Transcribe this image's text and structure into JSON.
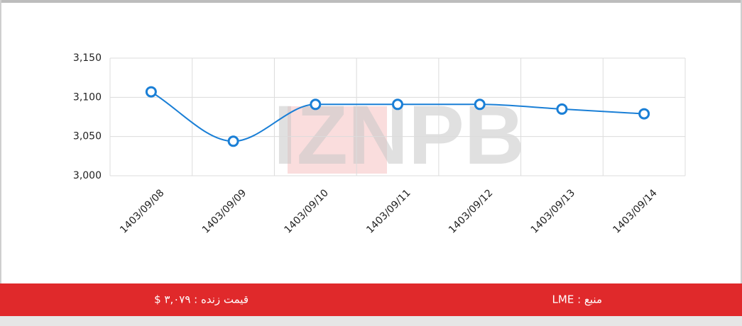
{
  "chart_data": {
    "type": "line",
    "watermark": "IZNPB",
    "categories": [
      "1403/09/08",
      "1403/09/09",
      "1403/09/10",
      "1403/09/11",
      "1403/09/12",
      "1403/09/13",
      "1403/09/14"
    ],
    "series": [
      {
        "color": "#1a7fd6",
        "values": [
          3107,
          3044,
          3091,
          3091,
          3091,
          3085,
          3079
        ]
      }
    ],
    "ylim": [
      3000,
      3150
    ],
    "yticks": [
      {
        "value": 3000,
        "label": "3,000"
      },
      {
        "value": 3050,
        "label": "3,050"
      },
      {
        "value": 3100,
        "label": "3,100"
      },
      {
        "value": 3150,
        "label": "3,150"
      }
    ],
    "grid": true
  },
  "footer": {
    "live_price": "قیمت زنده : ۳,۰۷۹ $",
    "source": "منبع : LME"
  }
}
